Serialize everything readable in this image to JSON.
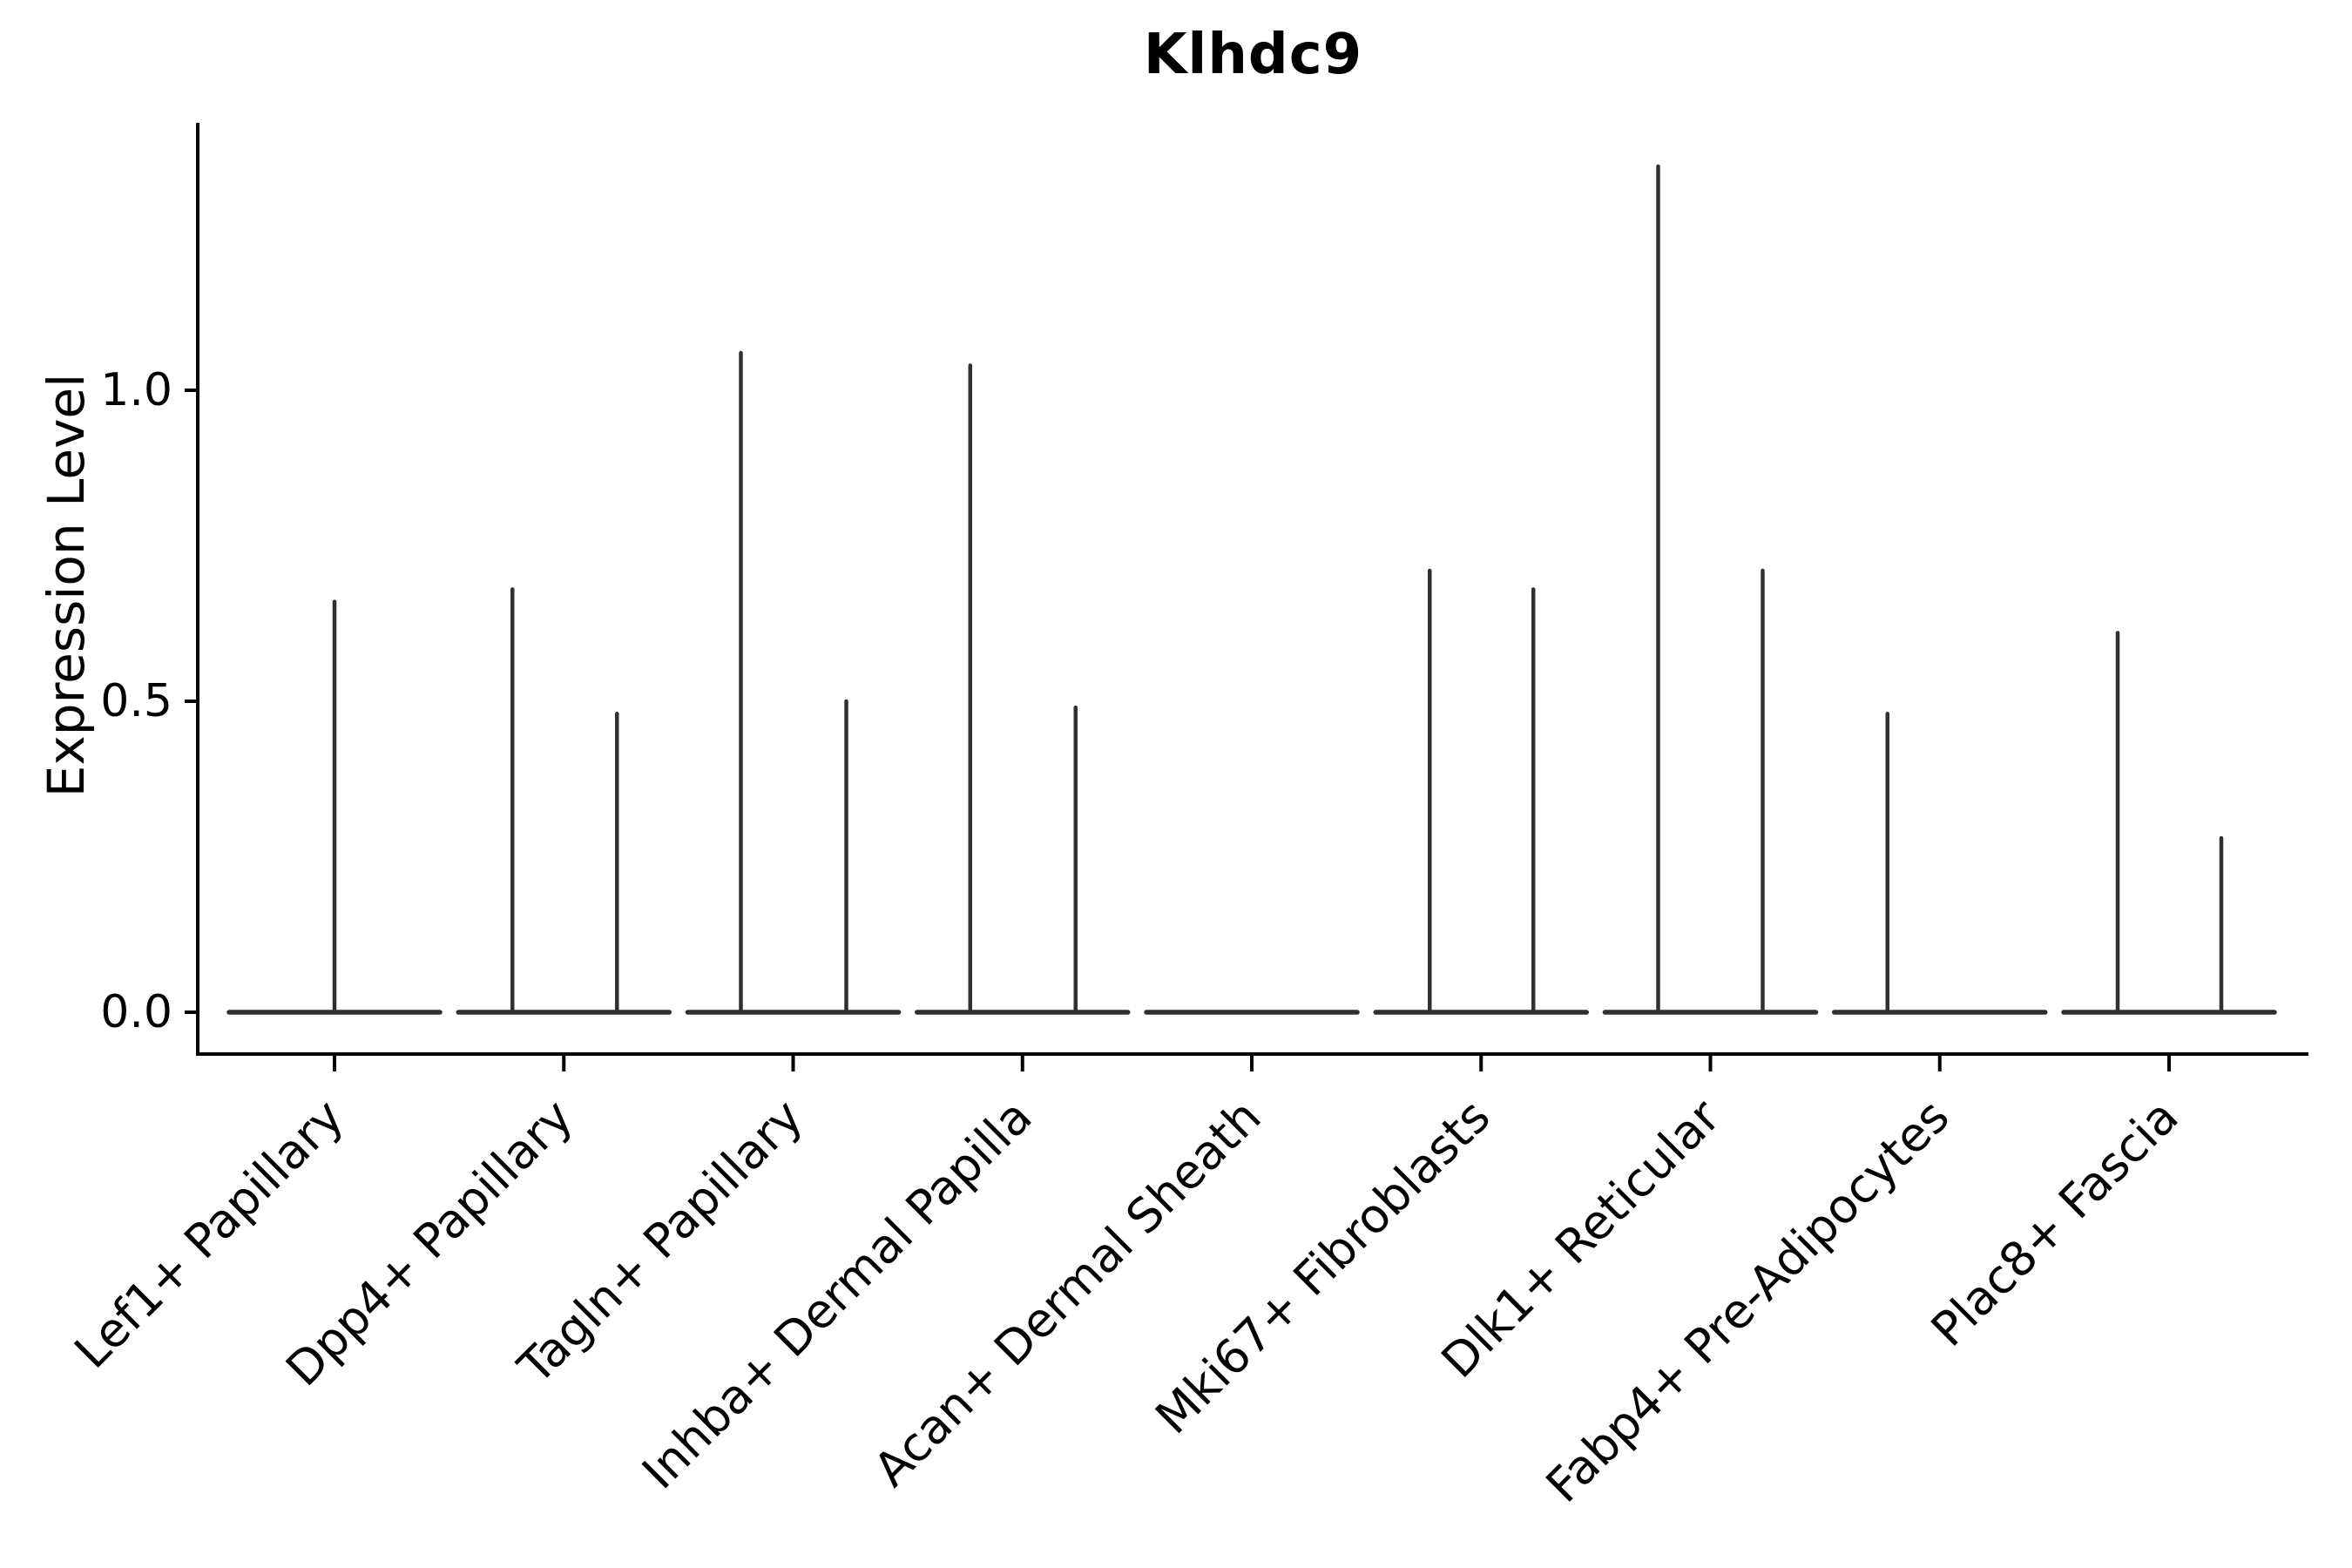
{
  "chart_data": {
    "type": "violin",
    "title": "Klhdc9",
    "ylabel": "Expression Level",
    "xlabel": "",
    "yticks": [
      0.0,
      0.5,
      1.0
    ],
    "ytick_labels": [
      "0.0",
      "0.5",
      "1.0"
    ],
    "ylim": [
      -0.07,
      1.43
    ],
    "grid": false,
    "legend": null,
    "baseline_value": 0.0,
    "categories": [
      "Lef1+ Papillary",
      "Dpp4+ Papillary",
      "Tagln+ Papillary",
      "Inhba+ Dermal Papilla",
      "Acan+ Dermal Sheath",
      "Mki67+ Fibroblasts",
      "Dlk1+ Reticular",
      "Fabp4+ Pre-Adipocytes",
      "Plac8+ Fascia"
    ],
    "violins": [
      {
        "category": "Lef1+ Papillary",
        "spikes": [
          {
            "offset": 0,
            "max": 0.66
          }
        ]
      },
      {
        "category": "Dpp4+ Papillary",
        "spikes": [
          {
            "offset": -59,
            "max": 0.68
          },
          {
            "offset": 61,
            "max": 0.48
          }
        ]
      },
      {
        "category": "Tagln+ Papillary",
        "spikes": [
          {
            "offset": -60,
            "max": 1.06
          },
          {
            "offset": 61,
            "max": 0.5
          }
        ]
      },
      {
        "category": "Inhba+ Dermal Papilla",
        "spikes": [
          {
            "offset": -60,
            "max": 1.04
          },
          {
            "offset": 61,
            "max": 0.49
          }
        ]
      },
      {
        "category": "Acan+ Dermal Sheath",
        "spikes": []
      },
      {
        "category": "Mki67+ Fibroblasts",
        "spikes": [
          {
            "offset": -59,
            "max": 0.71
          },
          {
            "offset": 60,
            "max": 0.68
          }
        ]
      },
      {
        "category": "Dlk1+ Reticular",
        "spikes": [
          {
            "offset": -60,
            "max": 1.36
          },
          {
            "offset": 60,
            "max": 0.71
          }
        ]
      },
      {
        "category": "Fabp4+ Pre-Adipocytes",
        "spikes": [
          {
            "offset": -60,
            "max": 0.48
          }
        ]
      },
      {
        "category": "Plac8+ Fascia",
        "spikes": [
          {
            "offset": -59,
            "max": 0.61
          },
          {
            "offset": 60,
            "max": 0.28
          }
        ]
      }
    ],
    "colors": {
      "violin": "#303030",
      "axis": "#000000",
      "text": "#000000",
      "background": "#ffffff"
    }
  }
}
